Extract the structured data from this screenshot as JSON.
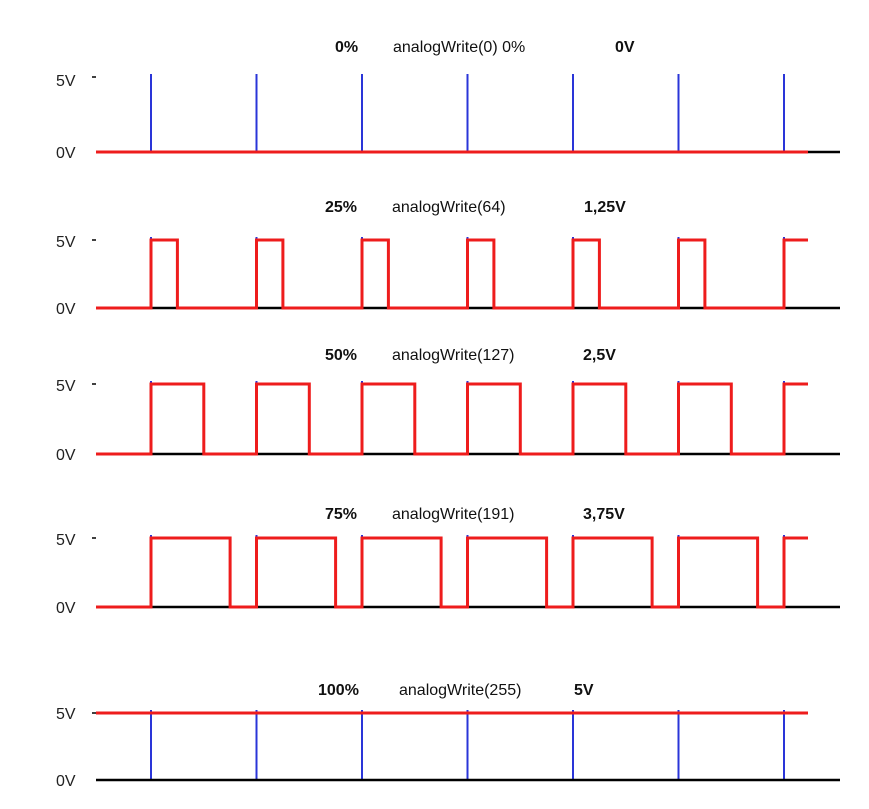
{
  "diagram": {
    "high_label": "5V",
    "low_label": "0V",
    "cycles": 7,
    "colors": {
      "signal": "#ee1c1c",
      "clock": "#2a35d8",
      "baseline": "#000000"
    },
    "rows": [
      {
        "pct": "0%",
        "call": "analogWrite(0) 0%",
        "volt": "0V",
        "duty": 0
      },
      {
        "pct": "25%",
        "call": "analogWrite(64)",
        "volt": "1,25V",
        "duty": 0.25
      },
      {
        "pct": "50%",
        "call": "analogWrite(127)",
        "volt": "2,5V",
        "duty": 0.5
      },
      {
        "pct": "75%",
        "call": "analogWrite(191)",
        "volt": "3,75V",
        "duty": 0.75
      },
      {
        "pct": "100%",
        "call": "analogWrite(255)",
        "volt": "5V",
        "duty": 1
      }
    ]
  }
}
